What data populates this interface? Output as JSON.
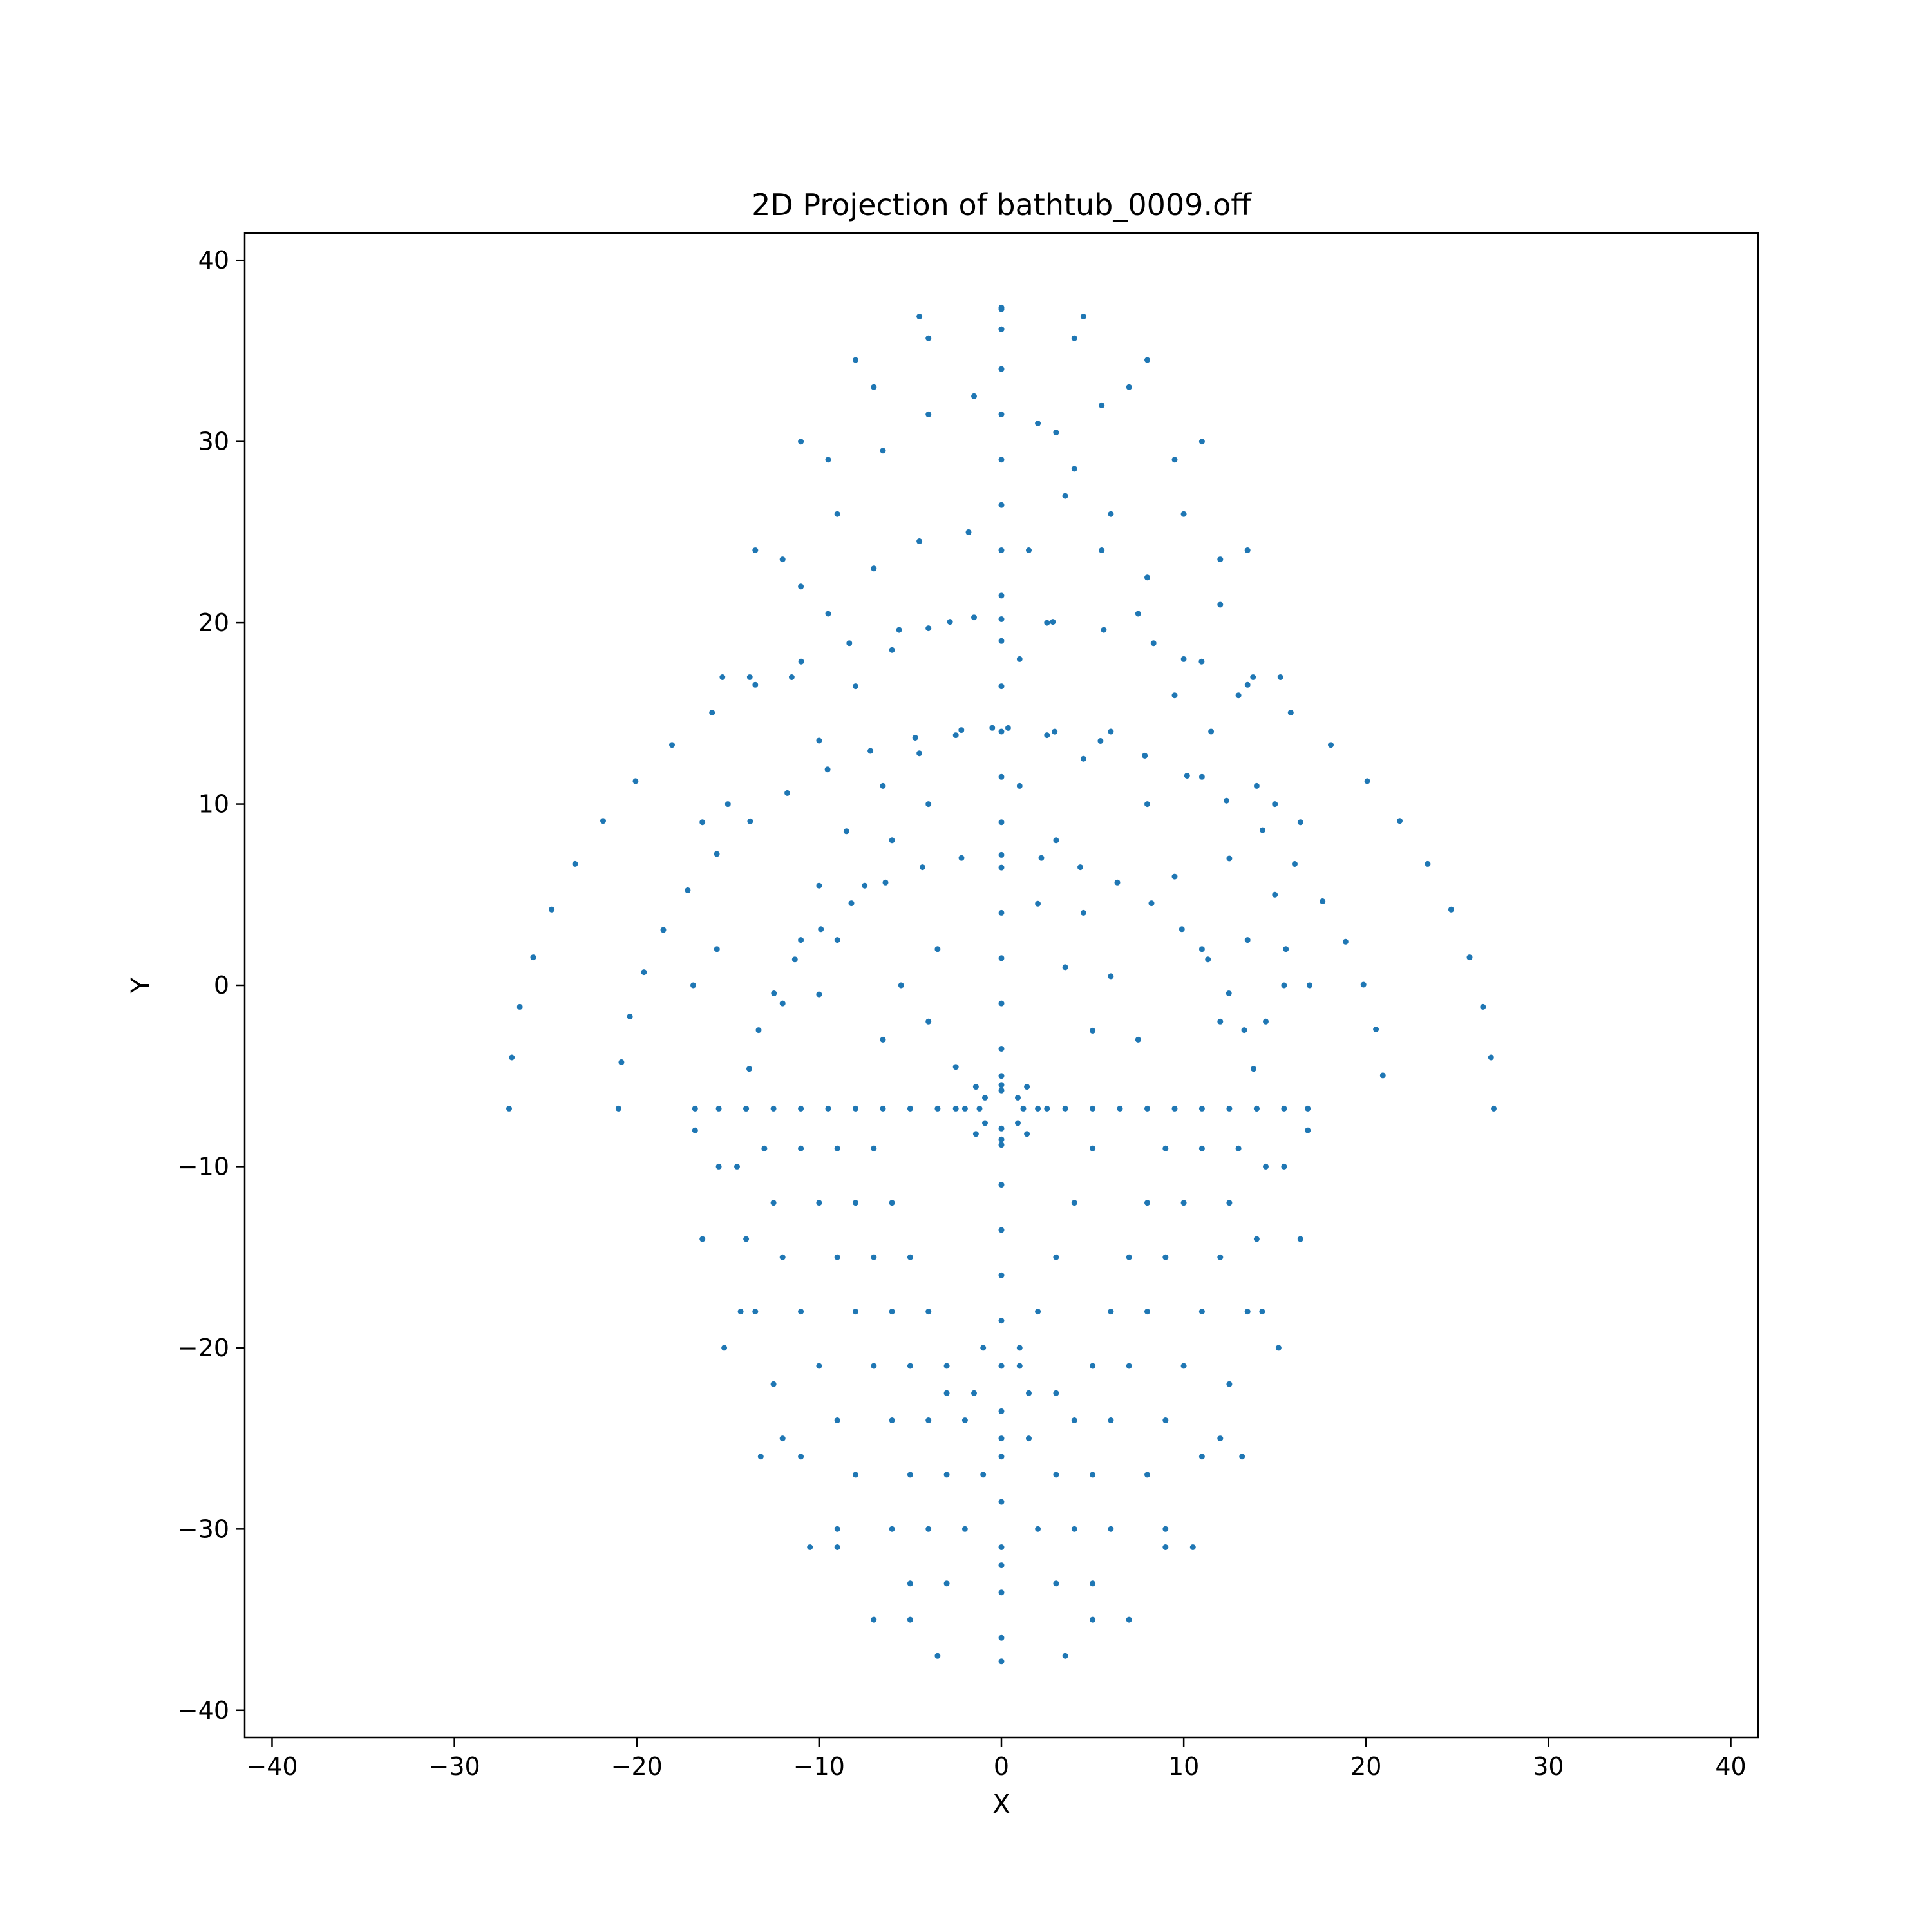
{
  "chart_data": {
    "type": "scatter",
    "title": "2D Projection of bathtub_0009.off",
    "xlabel": "X",
    "ylabel": "Y",
    "xlim": [
      -41.5,
      41.5
    ],
    "ylim": [
      -41.5,
      41.5
    ],
    "xticks": [
      -40,
      -30,
      -20,
      -10,
      0,
      10,
      20,
      30,
      40
    ],
    "yticks": [
      -40,
      -30,
      -20,
      -10,
      0,
      10,
      20,
      30,
      40
    ],
    "tick_labels": [
      "−40",
      "−30",
      "−20",
      "−10",
      "0",
      "10",
      "20",
      "30",
      "40"
    ],
    "grid": false,
    "marker_color": "#1f77b4",
    "series": [
      {
        "points": [
          [
            0,
            37.3
          ],
          [
            0,
            36.2
          ],
          [
            0,
            34.0
          ],
          [
            0,
            31.5
          ],
          [
            0,
            29.0
          ],
          [
            0,
            26.5
          ],
          [
            0,
            24.0
          ],
          [
            0,
            21.5
          ],
          [
            0,
            19.0
          ],
          [
            0,
            16.5
          ],
          [
            0,
            14.0
          ],
          [
            0,
            11.5
          ],
          [
            0,
            9.0
          ],
          [
            0,
            6.5
          ],
          [
            0,
            4.0
          ],
          [
            0,
            1.5
          ],
          [
            0,
            -1.0
          ],
          [
            0,
            -3.5
          ],
          [
            0,
            -5.5
          ],
          [
            0,
            -8.5
          ],
          [
            0,
            -11.0
          ],
          [
            0,
            -13.5
          ],
          [
            0,
            -16.0
          ],
          [
            0,
            -18.5
          ],
          [
            0,
            -21.0
          ],
          [
            0,
            -23.5
          ],
          [
            0,
            -26.0
          ],
          [
            0,
            -28.5
          ],
          [
            0,
            -31.0
          ],
          [
            0,
            -33.5
          ],
          [
            0,
            -36.0
          ],
          [
            0,
            -37.3
          ],
          [
            -16.8,
            -6.8
          ],
          [
            -15.5,
            -6.8
          ],
          [
            -14.0,
            -6.8
          ],
          [
            -12.5,
            -6.8
          ],
          [
            -11.0,
            -6.8
          ],
          [
            -9.5,
            -6.8
          ],
          [
            -8.0,
            -6.8
          ],
          [
            -6.5,
            -6.8
          ],
          [
            -5.0,
            -6.8
          ],
          [
            -3.5,
            -6.8
          ],
          [
            -2.5,
            -6.8
          ],
          [
            2.5,
            -6.8
          ],
          [
            3.5,
            -6.8
          ],
          [
            5.0,
            -6.8
          ],
          [
            6.5,
            -6.8
          ],
          [
            8.0,
            -6.8
          ],
          [
            9.5,
            -6.8
          ],
          [
            11.0,
            -6.8
          ],
          [
            12.5,
            -6.8
          ],
          [
            14.0,
            -6.8
          ],
          [
            15.5,
            -6.8
          ],
          [
            16.8,
            -6.8
          ],
          [
            0.0,
            -5.0
          ],
          [
            1.4,
            -5.6
          ],
          [
            2.0,
            -6.8
          ],
          [
            1.4,
            -8.2
          ],
          [
            0.0,
            -8.8
          ],
          [
            -1.4,
            -8.2
          ],
          [
            -2.0,
            -6.8
          ],
          [
            -1.4,
            -5.6
          ],
          [
            0.0,
            -5.8
          ],
          [
            0.9,
            -6.2
          ],
          [
            1.2,
            -6.8
          ],
          [
            0.9,
            -7.6
          ],
          [
            0.0,
            -7.9
          ],
          [
            -0.9,
            -7.6
          ],
          [
            -1.2,
            -6.8
          ],
          [
            -0.9,
            -6.2
          ],
          [
            0.0,
            37.4
          ],
          [
            4.5,
            36.9
          ],
          [
            8.0,
            34.5
          ],
          [
            11.0,
            30.0
          ],
          [
            13.5,
            24.0
          ],
          [
            15.3,
            17.0
          ],
          [
            16.4,
            9.0
          ],
          [
            16.9,
            0.0
          ],
          [
            16.8,
            -8.0
          ],
          [
            16.4,
            -14.0
          ],
          [
            15.2,
            -20.0
          ],
          [
            13.2,
            -26.0
          ],
          [
            10.5,
            -31.0
          ],
          [
            7.0,
            -35.0
          ],
          [
            3.5,
            -37.0
          ],
          [
            -3.5,
            -37.0
          ],
          [
            -7.0,
            -35.0
          ],
          [
            -10.5,
            -31.0
          ],
          [
            -13.2,
            -26.0
          ],
          [
            -15.2,
            -20.0
          ],
          [
            -16.4,
            -14.0
          ],
          [
            -16.8,
            -8.0
          ],
          [
            -16.9,
            0.0
          ],
          [
            -16.4,
            9.0
          ],
          [
            -15.3,
            17.0
          ],
          [
            -13.5,
            24.0
          ],
          [
            -11.0,
            30.0
          ],
          [
            -8.0,
            34.5
          ],
          [
            -4.5,
            36.9
          ],
          [
            0.0,
            36.2
          ],
          [
            4.0,
            35.7
          ],
          [
            7.0,
            33.0
          ],
          [
            9.5,
            29.0
          ],
          [
            12.0,
            23.5
          ],
          [
            13.8,
            17.0
          ],
          [
            15.0,
            10.0
          ],
          [
            15.6,
            2.0
          ],
          [
            15.5,
            -10.0
          ],
          [
            14.3,
            -18.0
          ],
          [
            12.0,
            -25.0
          ],
          [
            9.0,
            -31.0
          ],
          [
            5.0,
            -35.0
          ],
          [
            -5.0,
            -35.0
          ],
          [
            -9.0,
            -31.0
          ],
          [
            -12.0,
            -25.0
          ],
          [
            -14.3,
            -18.0
          ],
          [
            -15.5,
            -10.0
          ],
          [
            -15.6,
            2.0
          ],
          [
            -15.0,
            10.0
          ],
          [
            -13.8,
            17.0
          ],
          [
            -12.0,
            23.5
          ],
          [
            -9.5,
            29.0
          ],
          [
            -7.0,
            33.0
          ],
          [
            -4.0,
            35.7
          ],
          [
            -1.5,
            32.5
          ],
          [
            -4.0,
            31.5
          ],
          [
            -6.5,
            29.5
          ],
          [
            -9.0,
            26.0
          ],
          [
            -11.0,
            22.0
          ],
          [
            -1.8,
            25.0
          ],
          [
            -4.5,
            24.5
          ],
          [
            -7.0,
            23.0
          ],
          [
            -9.5,
            20.5
          ],
          [
            -11.5,
            17.0
          ],
          [
            -1.5,
            20.3
          ],
          [
            -4.0,
            19.7
          ],
          [
            -6.0,
            18.5
          ],
          [
            -8.0,
            16.5
          ],
          [
            -10.0,
            13.5
          ],
          [
            -0.5,
            14.2
          ],
          [
            -2.5,
            13.8
          ],
          [
            -4.5,
            12.8
          ],
          [
            -6.5,
            11.0
          ],
          [
            -8.5,
            8.5
          ],
          [
            -10.0,
            5.5
          ],
          [
            -11.0,
            2.5
          ],
          [
            -12.0,
            -1.0
          ],
          [
            -4.0,
            10.0
          ],
          [
            -6.0,
            8.0
          ],
          [
            -7.5,
            5.5
          ],
          [
            -9.0,
            2.5
          ],
          [
            -10.0,
            -0.5
          ],
          [
            -3.5,
            2.0
          ],
          [
            -5.5,
            0.0
          ],
          [
            -6.5,
            -3.0
          ],
          [
            -2.5,
            -4.5
          ],
          [
            -4.0,
            -2.0
          ],
          [
            1.0,
            11.0
          ],
          [
            2.5,
            13.8
          ],
          [
            4.5,
            12.5
          ],
          [
            3.0,
            8.0
          ],
          [
            4.5,
            4.0
          ],
          [
            6.0,
            0.5
          ],
          [
            7.5,
            -3.0
          ],
          [
            2.0,
            4.5
          ],
          [
            3.5,
            1.0
          ],
          [
            5.0,
            -2.5
          ],
          [
            6.0,
            14.0
          ],
          [
            8.0,
            10.0
          ],
          [
            9.5,
            6.0
          ],
          [
            11.0,
            2.0
          ],
          [
            12.0,
            -2.0
          ],
          [
            3.5,
            27.0
          ],
          [
            5.5,
            24.0
          ],
          [
            7.5,
            20.5
          ],
          [
            9.5,
            16.0
          ],
          [
            11.0,
            11.5
          ],
          [
            12.5,
            7.0
          ],
          [
            13.5,
            2.5
          ],
          [
            14.5,
            -2.0
          ],
          [
            2.0,
            31.0
          ],
          [
            4.0,
            28.5
          ],
          [
            6.0,
            26.0
          ],
          [
            8.0,
            22.5
          ],
          [
            10.0,
            18.0
          ],
          [
            11.5,
            14.0
          ],
          [
            1.0,
            18.0
          ],
          [
            2.5,
            20.0
          ],
          [
            1.5,
            24.0
          ],
          [
            3.0,
            30.5
          ],
          [
            5.5,
            32.0
          ],
          [
            10.0,
            26.0
          ],
          [
            12.0,
            21.0
          ],
          [
            13.0,
            16.0
          ],
          [
            14.0,
            11.0
          ],
          [
            15.0,
            5.0
          ],
          [
            15.5,
            0.0
          ],
          [
            -11.0,
            -9.0
          ],
          [
            -10.0,
            -12.0
          ],
          [
            -9.0,
            -15.0
          ],
          [
            -8.0,
            -18.0
          ],
          [
            -7.0,
            -21.0
          ],
          [
            -6.0,
            -24.0
          ],
          [
            -5.0,
            -27.0
          ],
          [
            -4.0,
            -30.0
          ],
          [
            -3.0,
            -33.0
          ],
          [
            -9.0,
            -9.0
          ],
          [
            -8.0,
            -12.0
          ],
          [
            -7.0,
            -15.0
          ],
          [
            -6.0,
            -18.0
          ],
          [
            -5.0,
            -21.0
          ],
          [
            -4.0,
            -24.0
          ],
          [
            -3.0,
            -27.0
          ],
          [
            -2.0,
            -30.0
          ],
          [
            -7.0,
            -9.0
          ],
          [
            -6.0,
            -12.0
          ],
          [
            -5.0,
            -15.0
          ],
          [
            -4.0,
            -18.0
          ],
          [
            -3.0,
            -21.0
          ],
          [
            -2.0,
            -24.0
          ],
          [
            -1.0,
            -27.0
          ],
          [
            -13.0,
            -9.0
          ],
          [
            -12.5,
            -12.0
          ],
          [
            -12.0,
            -15.0
          ],
          [
            -11.0,
            -18.0
          ],
          [
            -10.0,
            -21.0
          ],
          [
            -9.0,
            -24.0
          ],
          [
            -8.0,
            -27.0
          ],
          [
            -6.0,
            -30.0
          ],
          [
            -5.0,
            -33.0
          ],
          [
            -14.5,
            -10.0
          ],
          [
            -14.0,
            -14.0
          ],
          [
            -13.5,
            -18.0
          ],
          [
            -12.5,
            -22.0
          ],
          [
            -11.0,
            -26.0
          ],
          [
            -9.0,
            -30.0
          ],
          [
            11.0,
            -9.0
          ],
          [
            10.0,
            -12.0
          ],
          [
            9.0,
            -15.0
          ],
          [
            8.0,
            -18.0
          ],
          [
            7.0,
            -21.0
          ],
          [
            6.0,
            -24.0
          ],
          [
            5.0,
            -27.0
          ],
          [
            4.0,
            -30.0
          ],
          [
            3.0,
            -33.0
          ],
          [
            9.0,
            -9.0
          ],
          [
            8.0,
            -12.0
          ],
          [
            7.0,
            -15.0
          ],
          [
            6.0,
            -18.0
          ],
          [
            5.0,
            -21.0
          ],
          [
            4.0,
            -24.0
          ],
          [
            3.0,
            -27.0
          ],
          [
            2.0,
            -30.0
          ],
          [
            5.0,
            -9.0
          ],
          [
            4.0,
            -12.0
          ],
          [
            3.0,
            -15.0
          ],
          [
            2.0,
            -18.0
          ],
          [
            1.0,
            -21.0
          ],
          [
            1.5,
            -25.0
          ],
          [
            13.0,
            -9.0
          ],
          [
            12.5,
            -12.0
          ],
          [
            12.0,
            -15.0
          ],
          [
            11.0,
            -18.0
          ],
          [
            10.0,
            -21.0
          ],
          [
            9.0,
            -24.0
          ],
          [
            8.0,
            -27.0
          ],
          [
            6.0,
            -30.0
          ],
          [
            5.0,
            -33.0
          ],
          [
            14.5,
            -10.0
          ],
          [
            14.0,
            -14.0
          ],
          [
            13.5,
            -18.0
          ],
          [
            12.5,
            -22.0
          ],
          [
            11.0,
            -26.0
          ],
          [
            9.0,
            -30.0
          ],
          [
            -1.0,
            -20.0
          ],
          [
            -1.5,
            -22.5
          ],
          [
            1.0,
            -20.0
          ],
          [
            1.5,
            -22.5
          ],
          [
            -3.0,
            -22.5
          ],
          [
            3.0,
            -22.5
          ],
          [
            0,
            -25.0
          ],
          [
            0,
            -32.0
          ]
        ],
        "arcs": [
          {
            "cx": 0,
            "cy": -6.8,
            "r": 14.0,
            "from_deg": 180,
            "to_deg": 0,
            "step_deg": 9
          },
          {
            "cx": 0,
            "cy": -6.8,
            "r": 21.0,
            "from_deg": 180,
            "to_deg": 0,
            "step_deg": 7
          },
          {
            "cx": 0,
            "cy": -6.8,
            "r": 27.0,
            "from_deg": 180,
            "to_deg": 0,
            "step_deg": 6
          }
        ]
      }
    ]
  }
}
